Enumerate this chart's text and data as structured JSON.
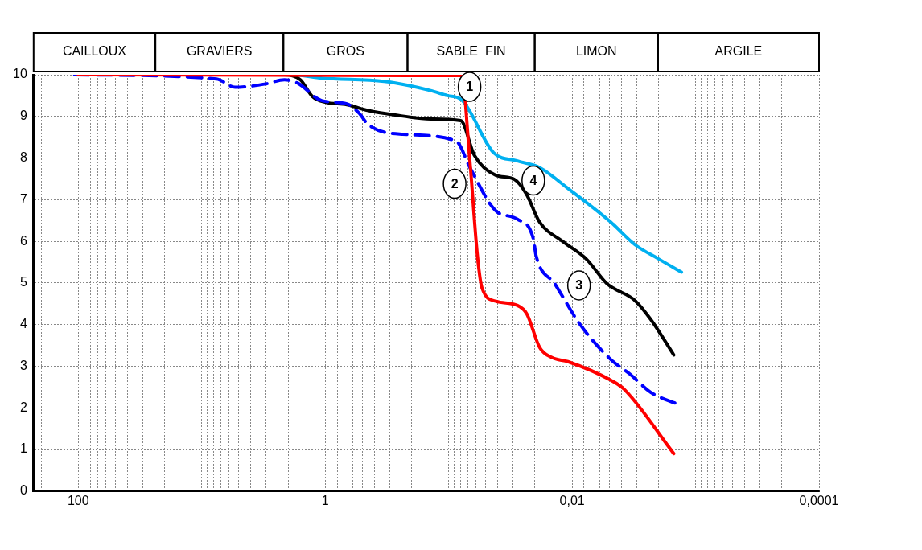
{
  "chart_data": {
    "type": "line",
    "xlim": [
      230,
      0.0001
    ],
    "ylim": [
      0,
      10
    ],
    "log": "x",
    "grid": true,
    "line_style": "solid",
    "marker": "none",
    "xticks": [
      {
        "value": 200,
        "label": null
      },
      {
        "value": 100,
        "label": "100"
      },
      {
        "value": 90,
        "label": null
      },
      {
        "value": 80,
        "label": null
      },
      {
        "value": 70,
        "label": null
      },
      {
        "value": 60,
        "label": null
      },
      {
        "value": 50,
        "label": null
      },
      {
        "value": 40,
        "label": null
      },
      {
        "value": 30,
        "label": null
      },
      {
        "value": 20,
        "label": null
      },
      {
        "value": 10,
        "label": null
      },
      {
        "value": 9,
        "label": null
      },
      {
        "value": 8,
        "label": null
      },
      {
        "value": 7,
        "label": null
      },
      {
        "value": 6,
        "label": null
      },
      {
        "value": 5,
        "label": null
      },
      {
        "value": 4,
        "label": null
      },
      {
        "value": 3,
        "label": null
      },
      {
        "value": 2,
        "label": null
      },
      {
        "value": 1,
        "label": "1"
      },
      {
        "value": 0.9,
        "label": null
      },
      {
        "value": 0.8,
        "label": null
      },
      {
        "value": 0.7,
        "label": null
      },
      {
        "value": 0.6,
        "label": null
      },
      {
        "value": 0.5,
        "label": null
      },
      {
        "value": 0.4,
        "label": null
      },
      {
        "value": 0.3,
        "label": null
      },
      {
        "value": 0.2,
        "label": null
      },
      {
        "value": 0.1,
        "label": null
      },
      {
        "value": 0.09,
        "label": null
      },
      {
        "value": 0.08,
        "label": null
      },
      {
        "value": 0.07,
        "label": null
      },
      {
        "value": 0.06,
        "label": null
      },
      {
        "value": 0.05,
        "label": null
      },
      {
        "value": 0.04,
        "label": null
      },
      {
        "value": 0.03,
        "label": null
      },
      {
        "value": 0.02,
        "label": null
      },
      {
        "value": 0.01,
        "label": "0,01"
      },
      {
        "value": 0.009,
        "label": null
      },
      {
        "value": 0.008,
        "label": null
      },
      {
        "value": 0.007,
        "label": null
      },
      {
        "value": 0.006,
        "label": null
      },
      {
        "value": 0.005,
        "label": null
      },
      {
        "value": 0.004,
        "label": null
      },
      {
        "value": 0.003,
        "label": null
      },
      {
        "value": 0.002,
        "label": null
      },
      {
        "value": 0.001,
        "label": null
      },
      {
        "value": 0.0009,
        "label": null
      },
      {
        "value": 0.0008,
        "label": null
      },
      {
        "value": 0.0007,
        "label": null
      },
      {
        "value": 0.0006,
        "label": null
      },
      {
        "value": 0.0005,
        "label": null
      },
      {
        "value": 0.0004,
        "label": null
      },
      {
        "value": 0.0003,
        "label": null
      },
      {
        "value": 0.0002,
        "label": null
      },
      {
        "value": 0.0001,
        "label": "0,0001"
      }
    ],
    "yticks": [
      0,
      1,
      2,
      3,
      4,
      5,
      6,
      7,
      8,
      9,
      10
    ],
    "annotations": [
      "CAILLOUX",
      "GRAVIERS",
      "GROS",
      "SABLE  FIN",
      "LIMON",
      "ARGILE"
    ],
    "series": [
      {
        "name": "1",
        "color": "#ff0000",
        "x": [
          100,
          0.0787,
          0.0673,
          0.0585,
          0.0537,
          0.0414,
          0.0277,
          0.0233,
          0.0183,
          0.0146,
          0.0108,
          0.0049,
          0.0038,
          0.0015
        ],
        "values": [
          10,
          9.98,
          7.93,
          5.66,
          4.88,
          4.56,
          4.46,
          4.26,
          3.45,
          3.21,
          3.11,
          2.67,
          2.45,
          0.9
        ]
      },
      {
        "name": "2",
        "color": "#0000ff",
        "line_style": "dashed",
        "x": [
          107,
          7.6,
          5.37,
          3.03,
          2.14,
          1.67,
          1.07,
          0.667,
          0.532,
          0.447,
          0.235,
          0.0873,
          0.0662,
          0.0414,
          0.0277,
          0.0206,
          0.0196,
          0.0138,
          0.0087,
          0.0049,
          0.0034,
          0.0023,
          0.0014
        ],
        "values": [
          10,
          9.9,
          9.7,
          9.78,
          9.88,
          9.8,
          9.38,
          9.3,
          9.08,
          8.8,
          8.57,
          8.41,
          7.73,
          6.73,
          6.53,
          6.06,
          5.66,
          4.98,
          4.02,
          3.17,
          2.81,
          2.37,
          2.09
        ]
      },
      {
        "name": "3",
        "color": "#000000",
        "x": [
          107,
          2.14,
          1.59,
          1.27,
          1.0,
          0.667,
          0.447,
          0.28,
          0.14,
          0.0798,
          0.062,
          0.0416,
          0.0294,
          0.0234,
          0.0184,
          0.0117,
          0.0077,
          0.0052,
          0.0031,
          0.0023,
          0.0015
        ],
        "values": [
          10,
          10,
          9.88,
          9.48,
          9.34,
          9.28,
          9.14,
          9.04,
          8.94,
          8.9,
          8.07,
          7.59,
          7.49,
          7.13,
          6.47,
          5.98,
          5.58,
          4.98,
          4.58,
          4.12,
          3.27
        ]
      },
      {
        "name": "4",
        "color": "#00b0f0",
        "x": [
          107,
          1.89,
          1.06,
          0.333,
          0.208,
          0.14,
          0.102,
          0.0787,
          0.0433,
          0.0277,
          0.0183,
          0.0108,
          0.0049,
          0.0031,
          0.002,
          0.0013
        ],
        "values": [
          10,
          10,
          9.92,
          9.84,
          9.74,
          9.62,
          9.5,
          9.4,
          8.13,
          7.93,
          7.77,
          7.27,
          6.47,
          5.92,
          5.58,
          5.26
        ]
      }
    ]
  }
}
